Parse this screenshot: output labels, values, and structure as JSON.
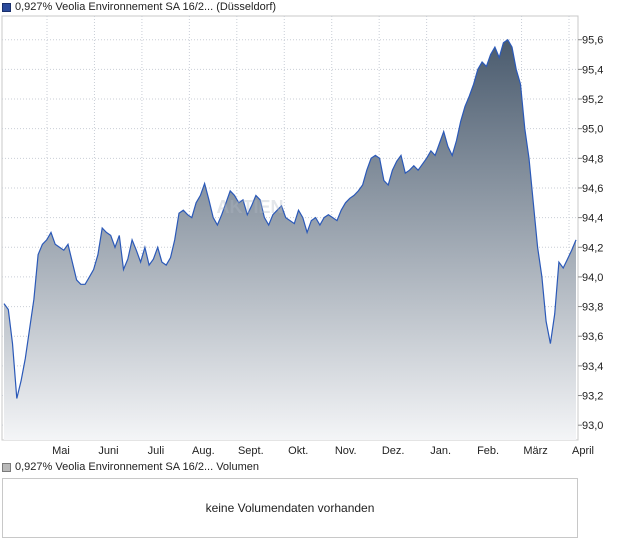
{
  "legend_main": "0,927% Veolia Environnement SA 16/2... (Düsseldorf)",
  "legend_volume": "0,927% Veolia Environnement SA 16/2... Volumen",
  "volume_message": "keine Volumendaten vorhanden",
  "watermark": "AKTIEN",
  "colors": {
    "line": "#2b59b8",
    "area_top": "#4a5b6e",
    "area_bottom": "#f4f5f7",
    "grid": "#c9ced6"
  },
  "chart_data": {
    "type": "area",
    "xlabel": "",
    "ylabel": "",
    "ylim": [
      92.9,
      95.76
    ],
    "grid": true,
    "x_tick_labels": [
      "Mai",
      "Juni",
      "Juli",
      "Aug.",
      "Sept.",
      "Okt.",
      "Nov.",
      "Dez.",
      "Jan.",
      "Feb.",
      "März",
      "April"
    ],
    "y_tick_labels": [
      "93,0",
      "93,2",
      "93,4",
      "93,6",
      "93,8",
      "94,0",
      "94,2",
      "94,4",
      "94,6",
      "94,8",
      "95,0",
      "95,2",
      "95,4",
      "95,6"
    ],
    "y_ticks": [
      93.0,
      93.2,
      93.4,
      93.6,
      93.8,
      94.0,
      94.2,
      94.4,
      94.6,
      94.8,
      95.0,
      95.2,
      95.4,
      95.6
    ],
    "series": [
      {
        "values": [
          93.82,
          93.78,
          93.55,
          93.18,
          93.3,
          93.45,
          93.65,
          93.85,
          94.15,
          94.22,
          94.25,
          94.3,
          94.22,
          94.2,
          94.18,
          94.22,
          94.1,
          93.98,
          93.95,
          93.95,
          94.0,
          94.05,
          94.15,
          94.33,
          94.3,
          94.28,
          94.2,
          94.28,
          94.05,
          94.12,
          94.25,
          94.18,
          94.1,
          94.2,
          94.08,
          94.12,
          94.2,
          94.1,
          94.08,
          94.13,
          94.25,
          94.43,
          94.45,
          94.42,
          94.4,
          94.5,
          94.55,
          94.63,
          94.52,
          94.4,
          94.35,
          94.42,
          94.5,
          94.58,
          94.55,
          94.5,
          94.52,
          94.42,
          94.48,
          94.55,
          94.52,
          94.4,
          94.35,
          94.42,
          94.45,
          94.48,
          94.4,
          94.38,
          94.36,
          94.45,
          94.4,
          94.3,
          94.38,
          94.4,
          94.35,
          94.4,
          94.42,
          94.4,
          94.38,
          94.45,
          94.5,
          94.53,
          94.55,
          94.58,
          94.62,
          94.72,
          94.8,
          94.82,
          94.8,
          94.65,
          94.62,
          94.72,
          94.78,
          94.82,
          94.7,
          94.72,
          94.75,
          94.72,
          94.76,
          94.8,
          94.85,
          94.82,
          94.9,
          94.98,
          94.88,
          94.82,
          94.92,
          95.05,
          95.15,
          95.22,
          95.3,
          95.4,
          95.45,
          95.42,
          95.5,
          95.55,
          95.48,
          95.58,
          95.6,
          95.55,
          95.4,
          95.3,
          95.0,
          94.8,
          94.5,
          94.2,
          94.0,
          93.7,
          93.55,
          93.75,
          94.1,
          94.06,
          94.12,
          94.18,
          94.25
        ]
      }
    ]
  }
}
